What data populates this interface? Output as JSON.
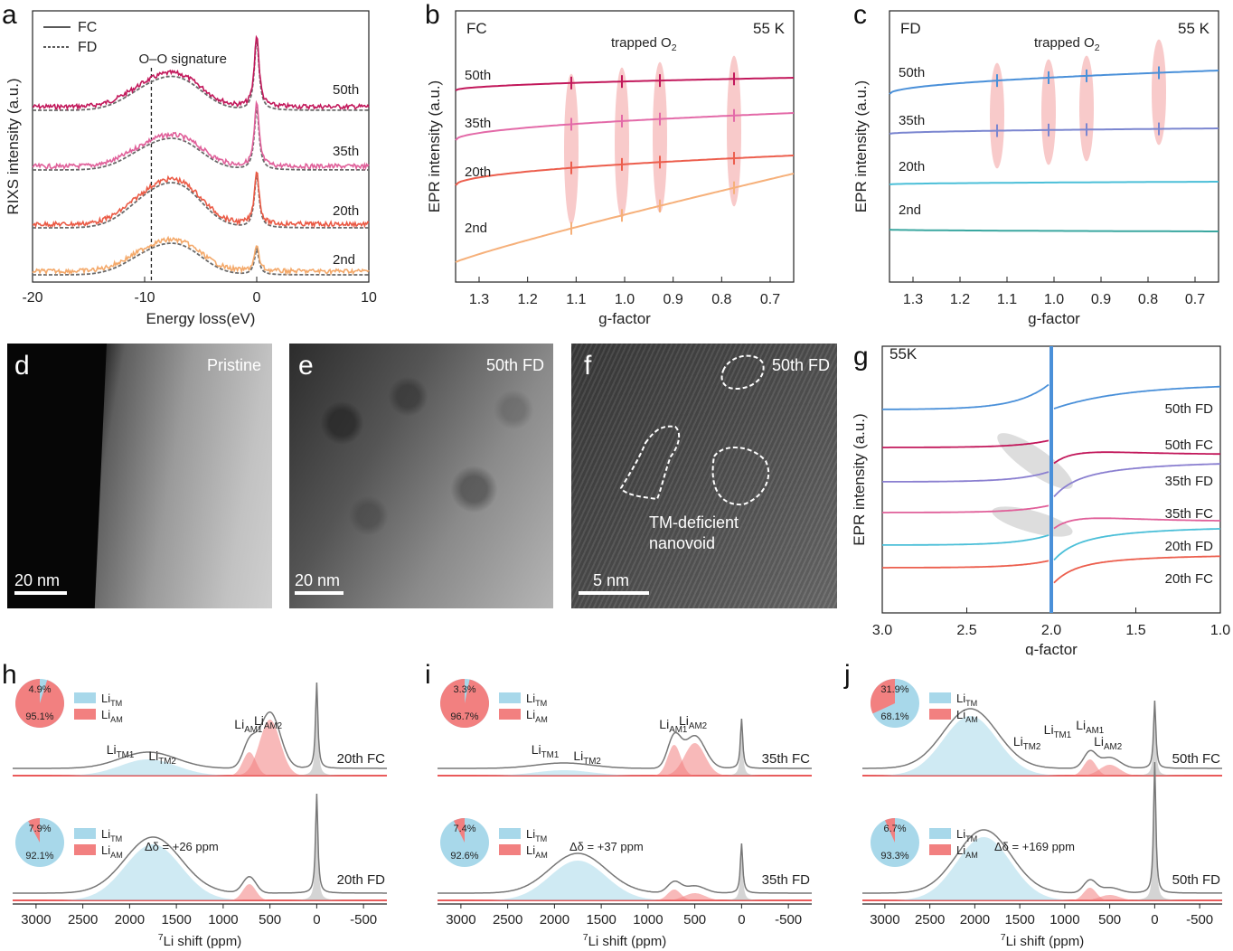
{
  "panels": {
    "a": {
      "letter": "a"
    },
    "b": {
      "letter": "b"
    },
    "c": {
      "letter": "c"
    },
    "d": {
      "letter": "d",
      "label": "Pristine",
      "scale": "20 nm"
    },
    "e": {
      "letter": "e",
      "label": "50th FD",
      "scale": "20 nm"
    },
    "f": {
      "letter": "f",
      "label": "50th FD",
      "scale": "5 nm",
      "annotation_1": "TM-deficient",
      "annotation_2": "nanovoid"
    },
    "g": {
      "letter": "g"
    },
    "h": {
      "letter": "h"
    },
    "i": {
      "letter": "i"
    },
    "j": {
      "letter": "j"
    }
  },
  "chart_data": [
    {
      "id": "a",
      "type": "line",
      "xlabel": "Energy loss(eV)",
      "ylabel": "RIXS intensity (a.u.)",
      "xlim": [
        -20,
        10
      ],
      "xticks": [
        -20,
        -10,
        0,
        10
      ],
      "legend": [
        "FC",
        "FD"
      ],
      "annotation": "O–O signature",
      "series": [
        {
          "name": "50th",
          "color": "#c2185b"
        },
        {
          "name": "35th",
          "color": "#e0609a"
        },
        {
          "name": "20th",
          "color": "#ea5a45"
        },
        {
          "name": "2nd",
          "color": "#f4a96a"
        }
      ]
    },
    {
      "id": "b",
      "type": "line",
      "title_left": "FC",
      "title_right": "55 K",
      "xlabel": "g-factor",
      "ylabel": "EPR intensity (a.u.)",
      "xticks": [
        "1.3",
        "1.2",
        "1.1",
        "1.0",
        "0.9",
        "0.8",
        "0.7"
      ],
      "annotation": "trapped O",
      "annotation_sub": "2",
      "series": [
        {
          "name": "50th",
          "color": "#c2185b"
        },
        {
          "name": "35th",
          "color": "#e36aa8"
        },
        {
          "name": "20th",
          "color": "#ec5e4d"
        },
        {
          "name": "2nd",
          "color": "#f6b07a"
        }
      ]
    },
    {
      "id": "c",
      "type": "line",
      "title_left": "FD",
      "title_right": "55 K",
      "xlabel": "g-factor",
      "ylabel": "EPR intensity (a.u.)",
      "xticks": [
        "1.3",
        "1.2",
        "1.1",
        "1.0",
        "0.9",
        "0.8",
        "0.7"
      ],
      "annotation": "trapped O",
      "annotation_sub": "2",
      "series": [
        {
          "name": "50th",
          "color": "#4a90d9"
        },
        {
          "name": "35th",
          "color": "#7b86d0"
        },
        {
          "name": "20th",
          "color": "#4bbfd8"
        },
        {
          "name": "2nd",
          "color": "#3aa7a0"
        }
      ]
    },
    {
      "id": "g",
      "type": "line",
      "title_left": "55K",
      "xlabel": "g-factor",
      "ylabel": "EPR intensity (a.u.)",
      "xlim": [
        3.0,
        1.0
      ],
      "xticks": [
        "3.0",
        "2.5",
        "2.0",
        "1.5",
        "1.0"
      ],
      "series": [
        {
          "name": "50th FD",
          "color": "#4a90d9"
        },
        {
          "name": "50th FC",
          "color": "#c2185b"
        },
        {
          "name": "35th FD",
          "color": "#8a7fd0"
        },
        {
          "name": "35th FC",
          "color": "#e0609a"
        },
        {
          "name": "20th FD",
          "color": "#4bbfd8"
        },
        {
          "name": "20th FC",
          "color": "#ec5e4d"
        }
      ]
    },
    {
      "id": "h",
      "type": "line",
      "xlabel": "Li shift (ppm)",
      "xlabel_sup": "7",
      "xticks": [
        "3000",
        "2500",
        "2000",
        "1500",
        "1000",
        "500",
        "0",
        "-500"
      ],
      "top": {
        "name": "20th FC",
        "pie": {
          "TM": 4.9,
          "AM": 95.1
        },
        "pie_labels": [
          "4.9%",
          "95.1%"
        ],
        "peaks": [
          "Li",
          "Li",
          "Li",
          "Li"
        ],
        "peak_subs": [
          "TM1",
          "TM2",
          "AM1",
          "AM2"
        ]
      },
      "bottom": {
        "name": "20th FD",
        "pie": {
          "TM": 92.1,
          "AM": 7.9
        },
        "pie_labels": [
          "7.9%",
          "92.1%"
        ],
        "delta": "Δδ = +26 ppm"
      },
      "legend": [
        "Li",
        "Li"
      ],
      "legend_subs": [
        "TM",
        "AM"
      ]
    },
    {
      "id": "i",
      "type": "line",
      "xlabel": "Li shift (ppm)",
      "xlabel_sup": "7",
      "xticks": [
        "3000",
        "2500",
        "2000",
        "1500",
        "1000",
        "500",
        "0",
        "-500"
      ],
      "top": {
        "name": "35th FC",
        "pie": {
          "TM": 3.3,
          "AM": 96.7
        },
        "pie_labels": [
          "3.3%",
          "96.7%"
        ],
        "peaks": [
          "Li",
          "Li",
          "Li",
          "Li"
        ],
        "peak_subs": [
          "TM1",
          "TM2",
          "AM1",
          "AM2"
        ]
      },
      "bottom": {
        "name": "35th FD",
        "pie": {
          "TM": 92.6,
          "AM": 7.4
        },
        "pie_labels": [
          "7.4%",
          "92.6%"
        ],
        "delta": "Δδ = +37 ppm"
      },
      "legend": [
        "Li",
        "Li"
      ],
      "legend_subs": [
        "TM",
        "AM"
      ]
    },
    {
      "id": "j",
      "type": "line",
      "xlabel": "Li shift (ppm)",
      "xlabel_sup": "7",
      "xticks": [
        "3000",
        "2500",
        "2000",
        "1500",
        "1000",
        "500",
        "0",
        "-500"
      ],
      "top": {
        "name": "50th FC",
        "pie": {
          "TM": 68.1,
          "AM": 31.9
        },
        "pie_labels": [
          "31.9%",
          "68.1%"
        ],
        "peaks": [
          "Li",
          "Li",
          "Li",
          "Li"
        ],
        "peak_subs": [
          "TM1",
          "TM2",
          "AM1",
          "AM2"
        ]
      },
      "bottom": {
        "name": "50th FD",
        "pie": {
          "TM": 93.3,
          "AM": 6.7
        },
        "pie_labels": [
          "6.7%",
          "93.3%"
        ],
        "delta": "Δδ = +169 ppm"
      },
      "legend": [
        "Li",
        "Li"
      ],
      "legend_subs": [
        "TM",
        "AM"
      ]
    }
  ]
}
